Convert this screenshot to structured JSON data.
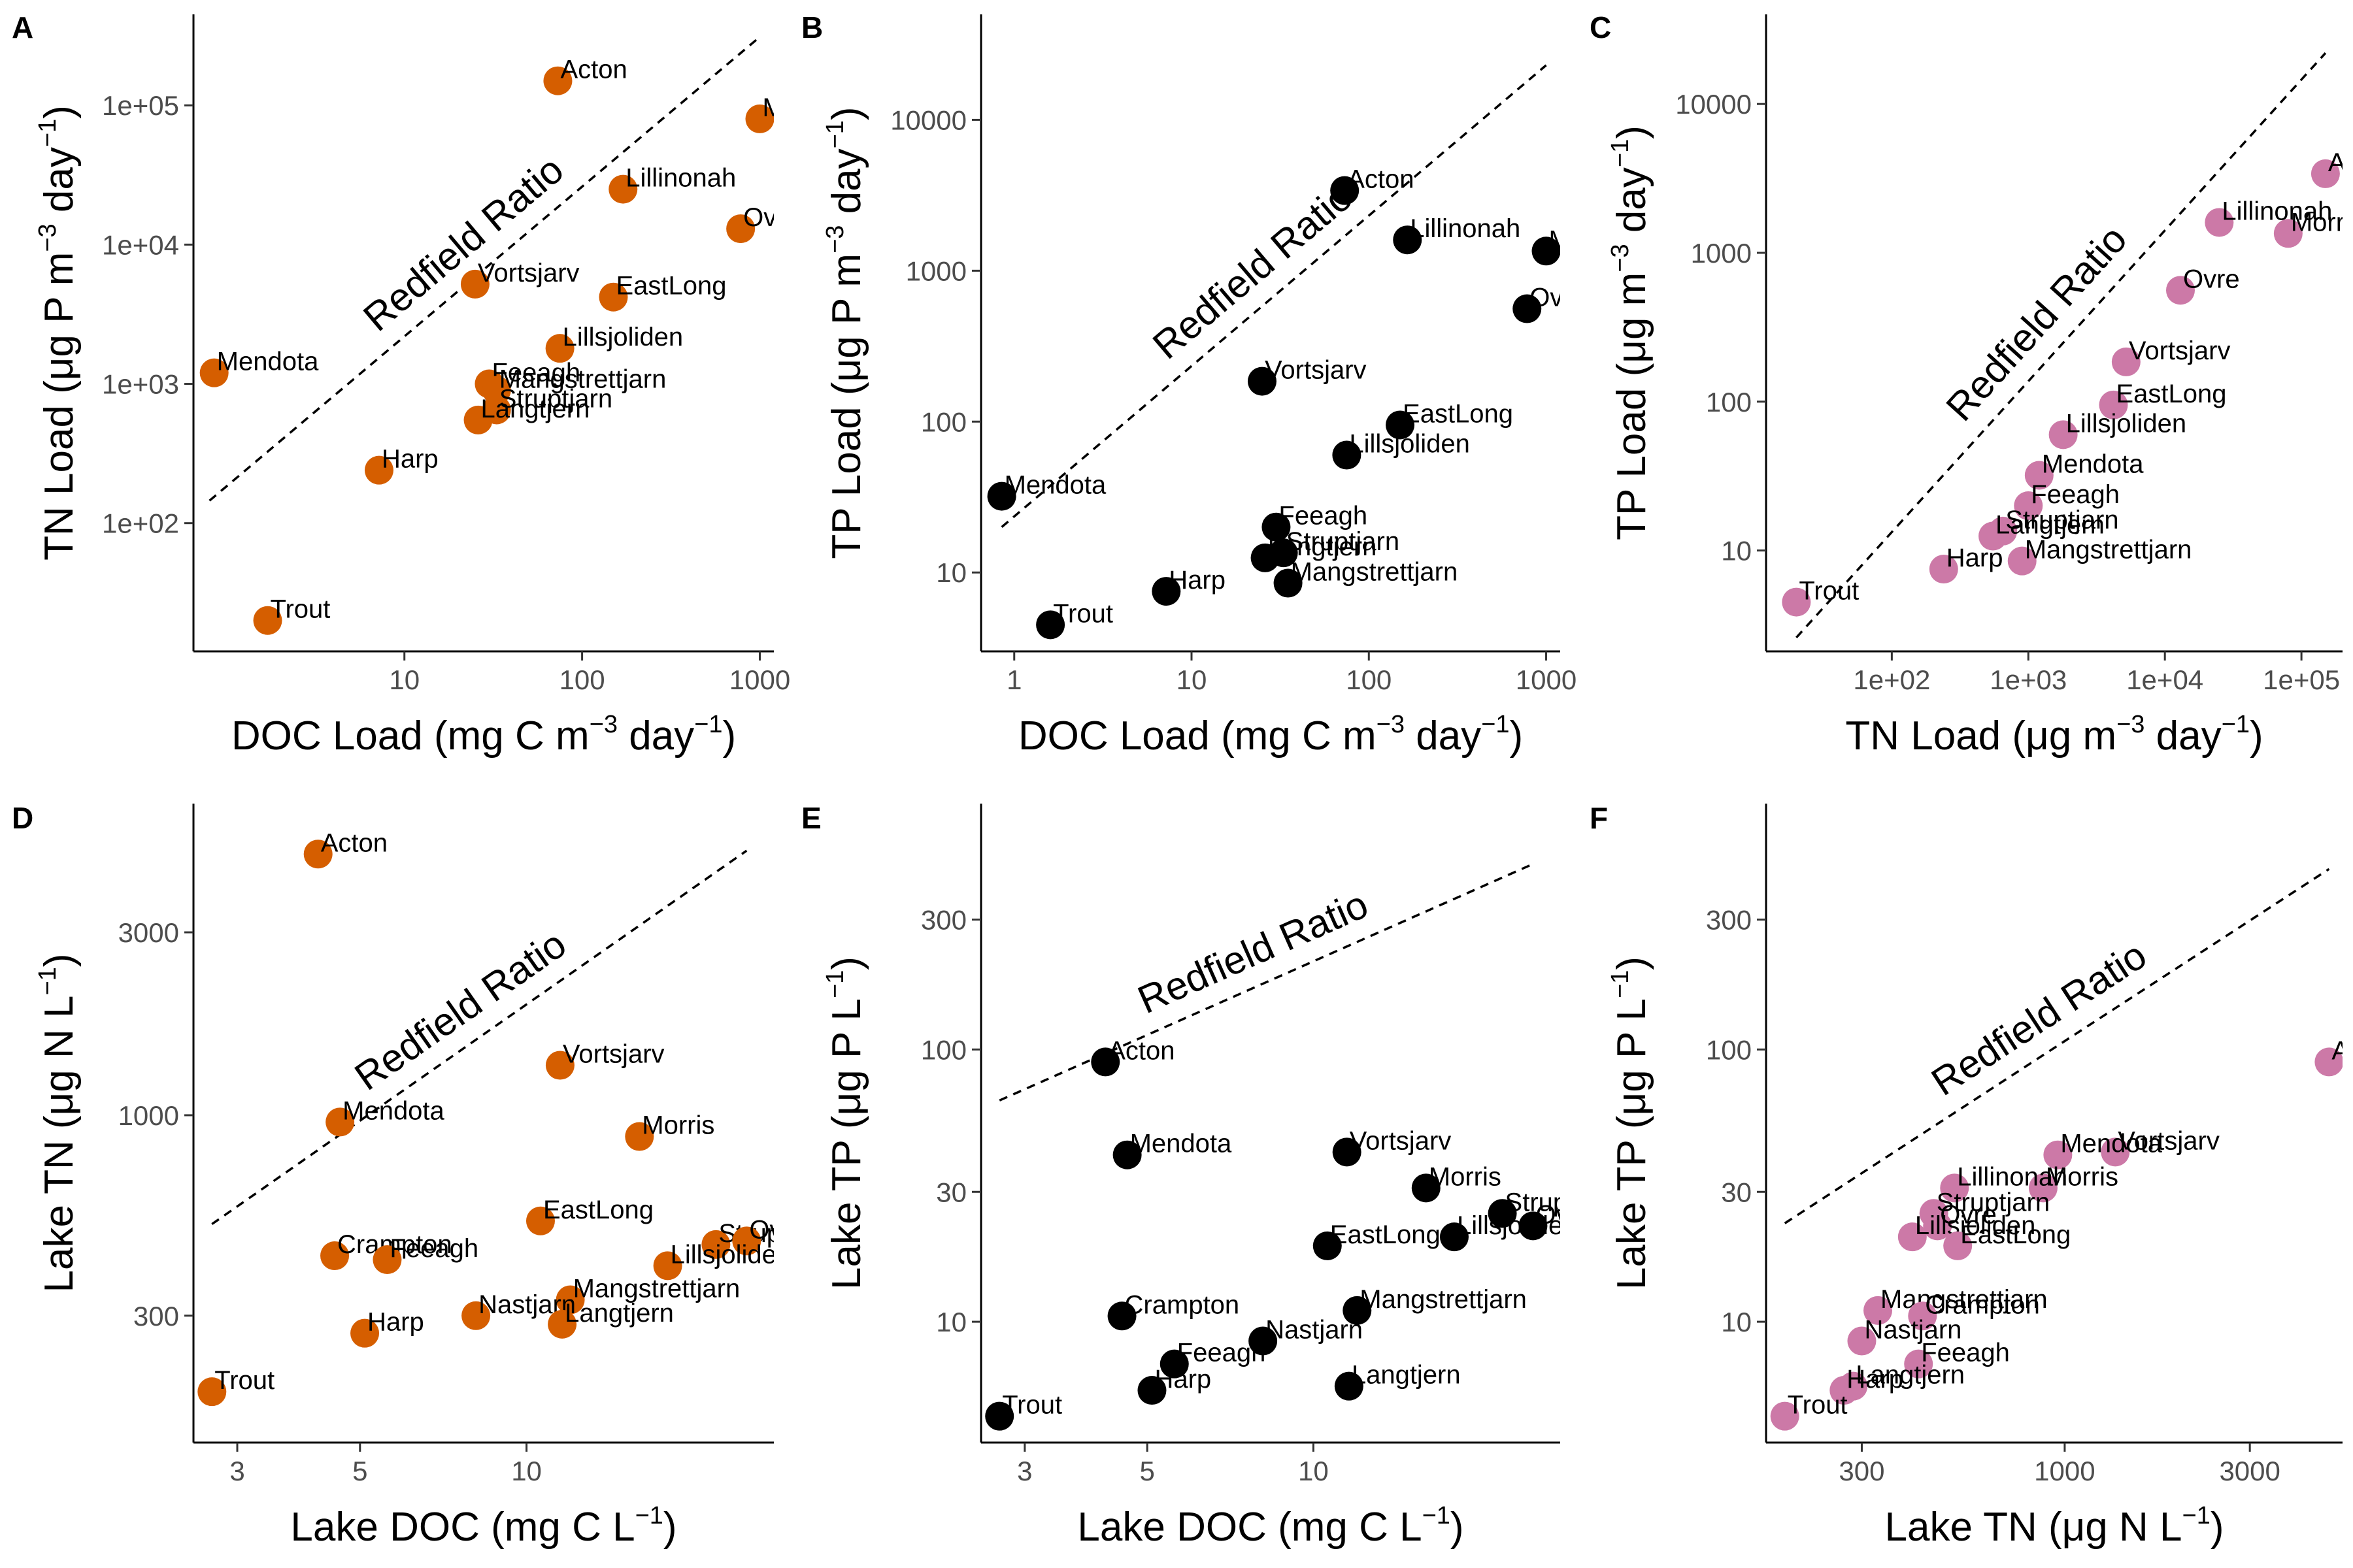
{
  "chart_data": [
    {
      "panel": "A",
      "type": "scatter",
      "xlabel": "DOC Load (mg C m⁻³ day⁻¹)",
      "ylabel": "TN Load (μg P m⁻³ day⁻¹)",
      "x_scale": "log10",
      "y_scale": "log10",
      "xlim": [
        0.65,
        1200
      ],
      "ylim": [
        12,
        450000
      ],
      "x_ticks": [
        {
          "value": 10,
          "label": "10"
        },
        {
          "value": 100,
          "label": "100"
        },
        {
          "value": 1000,
          "label": "1000"
        }
      ],
      "y_ticks": [
        {
          "value": 100,
          "label": "1e+02"
        },
        {
          "value": 1000,
          "label": "1e+03"
        },
        {
          "value": 10000,
          "label": "1e+04"
        },
        {
          "value": 100000,
          "label": "1e+05"
        }
      ],
      "color": "#d55e00",
      "reference_line": {
        "label": "Redfield Ratio",
        "x": [
          0.8,
          1000
        ],
        "y": [
          145,
          310000
        ]
      },
      "points": [
        {
          "name": "Acton",
          "x": 73,
          "y": 150000
        },
        {
          "name": "Mendota",
          "x": 1000,
          "y": 80000
        },
        {
          "name": "Lillinonah",
          "x": 170,
          "y": 25000
        },
        {
          "name": "Ovre",
          "x": 780,
          "y": 13000
        },
        {
          "name": "Vortsjarv",
          "x": 25,
          "y": 5200
        },
        {
          "name": "EastLong",
          "x": 150,
          "y": 4200
        },
        {
          "name": "Lillsjoliden",
          "x": 75,
          "y": 1800
        },
        {
          "name": "Mendota",
          "x": 0.85,
          "y": 1200
        },
        {
          "name": "Feeagh",
          "x": 30,
          "y": 1000
        },
        {
          "name": "Mangstrettjarn",
          "x": 33,
          "y": 900
        },
        {
          "name": "Struptjarn",
          "x": 33,
          "y": 650
        },
        {
          "name": "Langtjern",
          "x": 26,
          "y": 550
        },
        {
          "name": "Harp",
          "x": 7.2,
          "y": 240
        },
        {
          "name": "Trout",
          "x": 1.7,
          "y": 20
        }
      ]
    },
    {
      "panel": "B",
      "type": "scatter",
      "xlabel": "DOC Load (mg C m⁻³ day⁻¹)",
      "ylabel": "TP Load (μg P m⁻³ day⁻¹)",
      "x_scale": "log10",
      "y_scale": "log10",
      "xlim": [
        0.65,
        1200
      ],
      "ylim": [
        3,
        50000
      ],
      "x_ticks": [
        {
          "value": 1,
          "label": "1"
        },
        {
          "value": 10,
          "label": "10"
        },
        {
          "value": 100,
          "label": "100"
        },
        {
          "value": 1000,
          "label": "1000"
        }
      ],
      "y_ticks": [
        {
          "value": 10,
          "label": "10"
        },
        {
          "value": 100,
          "label": "100"
        },
        {
          "value": 1000,
          "label": "1000"
        },
        {
          "value": 10000,
          "label": "10000"
        }
      ],
      "color": "#000000",
      "reference_line": {
        "label": "Redfield Ratio",
        "x": [
          0.85,
          1000
        ],
        "y": [
          20,
          23000
        ]
      },
      "points": [
        {
          "name": "Acton",
          "x": 73,
          "y": 3400
        },
        {
          "name": "Lillinonah",
          "x": 165,
          "y": 1600
        },
        {
          "name": "Mendota",
          "x": 1000,
          "y": 1350
        },
        {
          "name": "Ovre",
          "x": 780,
          "y": 560
        },
        {
          "name": "Vortsjarv",
          "x": 25,
          "y": 185
        },
        {
          "name": "EastLong",
          "x": 150,
          "y": 95
        },
        {
          "name": "Lillsjoliden",
          "x": 75,
          "y": 60
        },
        {
          "name": "Mendota",
          "x": 0.85,
          "y": 32
        },
        {
          "name": "Feeagh",
          "x": 30,
          "y": 20
        },
        {
          "name": "Struptjarn",
          "x": 33,
          "y": 13.5
        },
        {
          "name": "Langtjern",
          "x": 26,
          "y": 12.5
        },
        {
          "name": "Mangstrettjarn",
          "x": 35,
          "y": 8.5
        },
        {
          "name": "Harp",
          "x": 7.2,
          "y": 7.5
        },
        {
          "name": "Trout",
          "x": 1.6,
          "y": 4.5
        }
      ]
    },
    {
      "panel": "C",
      "type": "scatter",
      "xlabel": "TN Load (μg m⁻³ day⁻¹)",
      "ylabel": "TP Load (μg m⁻³ day⁻¹)",
      "x_scale": "log10",
      "y_scale": "log10",
      "xlim": [
        12,
        200000
      ],
      "ylim": [
        2.1,
        40000
      ],
      "x_ticks": [
        {
          "value": 100,
          "label": "1e+02"
        },
        {
          "value": 1000,
          "label": "1e+03"
        },
        {
          "value": 10000,
          "label": "1e+04"
        },
        {
          "value": 100000,
          "label": "1e+05"
        }
      ],
      "y_ticks": [
        {
          "value": 10,
          "label": "10"
        },
        {
          "value": 100,
          "label": "100"
        },
        {
          "value": 1000,
          "label": "1000"
        },
        {
          "value": 10000,
          "label": "10000"
        }
      ],
      "color": "#cc79a7",
      "reference_line": {
        "label": "Redfield Ratio",
        "x": [
          20,
          150000
        ],
        "y": [
          2.6,
          22000
        ]
      },
      "points": [
        {
          "name": "Acton",
          "x": 150000,
          "y": 3400
        },
        {
          "name": "Lillinonah",
          "x": 25000,
          "y": 1600
        },
        {
          "name": "Morris",
          "x": 80000,
          "y": 1350
        },
        {
          "name": "Ovre",
          "x": 13000,
          "y": 560
        },
        {
          "name": "Vortsjarv",
          "x": 5200,
          "y": 185
        },
        {
          "name": "EastLong",
          "x": 4200,
          "y": 95
        },
        {
          "name": "Lillsjoliden",
          "x": 1800,
          "y": 60
        },
        {
          "name": "Mendota",
          "x": 1200,
          "y": 32
        },
        {
          "name": "Feeagh",
          "x": 1000,
          "y": 20
        },
        {
          "name": "Struptjarn",
          "x": 650,
          "y": 13.5
        },
        {
          "name": "Langtjern",
          "x": 550,
          "y": 12.5
        },
        {
          "name": "Harp",
          "x": 240,
          "y": 7.5
        },
        {
          "name": "Mangstrettjarn",
          "x": 900,
          "y": 8.5
        },
        {
          "name": "Trout",
          "x": 20,
          "y": 4.5
        }
      ]
    },
    {
      "panel": "D",
      "type": "scatter",
      "xlabel": "Lake DOC (mg C L⁻¹)",
      "ylabel": "Lake TN (μg N L⁻¹)",
      "x_scale": "log10",
      "y_scale": "log10",
      "xlim": [
        2.5,
        28
      ],
      "ylim": [
        140,
        6500
      ],
      "x_ticks": [
        {
          "value": 3,
          "label": "3"
        },
        {
          "value": 5,
          "label": "5"
        },
        {
          "value": 10,
          "label": "10"
        }
      ],
      "y_ticks": [
        {
          "value": 300,
          "label": "300"
        },
        {
          "value": 1000,
          "label": "1000"
        },
        {
          "value": 3000,
          "label": "3000"
        }
      ],
      "color": "#d55e00",
      "reference_line": {
        "label": "Redfield Ratio",
        "x": [
          2.7,
          25
        ],
        "y": [
          520,
          4900
        ]
      },
      "points": [
        {
          "name": "Acton",
          "x": 4.2,
          "y": 4800
        },
        {
          "name": "Vortsjarv",
          "x": 11.5,
          "y": 1350
        },
        {
          "name": "Mendota",
          "x": 4.6,
          "y": 960
        },
        {
          "name": "Morris",
          "x": 16,
          "y": 880
        },
        {
          "name": "EastLong",
          "x": 10.6,
          "y": 530
        },
        {
          "name": "Struptjarn",
          "x": 22,
          "y": 460
        },
        {
          "name": "Ovre",
          "x": 25,
          "y": 470
        },
        {
          "name": "Crampton",
          "x": 4.5,
          "y": 430
        },
        {
          "name": "Feeagh",
          "x": 5.6,
          "y": 420
        },
        {
          "name": "Lillsjoliden",
          "x": 18,
          "y": 405
        },
        {
          "name": "Mangstrettjarn",
          "x": 12,
          "y": 330
        },
        {
          "name": "Nastjarn",
          "x": 8.1,
          "y": 300
        },
        {
          "name": "Langtjern",
          "x": 11.6,
          "y": 285
        },
        {
          "name": "Harp",
          "x": 5.1,
          "y": 270
        },
        {
          "name": "Trout",
          "x": 2.7,
          "y": 190
        }
      ]
    },
    {
      "panel": "E",
      "type": "scatter",
      "xlabel": "Lake DOC (mg C L⁻¹)",
      "ylabel": "Lake TP (μg P L⁻¹)",
      "x_scale": "log10",
      "y_scale": "log10",
      "xlim": [
        2.5,
        28
      ],
      "ylim": [
        3.6,
        800
      ],
      "x_ticks": [
        {
          "value": 3,
          "label": "3"
        },
        {
          "value": 5,
          "label": "5"
        },
        {
          "value": 10,
          "label": "10"
        }
      ],
      "y_ticks": [
        {
          "value": 10,
          "label": "10"
        },
        {
          "value": 30,
          "label": "30"
        },
        {
          "value": 100,
          "label": "100"
        },
        {
          "value": 300,
          "label": "300"
        }
      ],
      "color": "#000000",
      "reference_line": {
        "label": "Redfield Ratio",
        "x": [
          2.7,
          25
        ],
        "y": [
          65,
          480
        ]
      },
      "points": [
        {
          "name": "Acton",
          "x": 4.2,
          "y": 90
        },
        {
          "name": "Vortsjarv",
          "x": 11.5,
          "y": 42
        },
        {
          "name": "Mendota",
          "x": 4.6,
          "y": 41
        },
        {
          "name": "Morris",
          "x": 16,
          "y": 31
        },
        {
          "name": "Struptjarn",
          "x": 22,
          "y": 25
        },
        {
          "name": "Ovre",
          "x": 25,
          "y": 22.5
        },
        {
          "name": "Lillsjoliden",
          "x": 18,
          "y": 20.5
        },
        {
          "name": "EastLong",
          "x": 10.6,
          "y": 19
        },
        {
          "name": "Mangstrettjarn",
          "x": 12,
          "y": 11
        },
        {
          "name": "Crampton",
          "x": 4.5,
          "y": 10.5
        },
        {
          "name": "Nastjarn",
          "x": 8.1,
          "y": 8.5
        },
        {
          "name": "Feeagh",
          "x": 5.6,
          "y": 7
        },
        {
          "name": "Langtjern",
          "x": 11.6,
          "y": 5.8
        },
        {
          "name": "Harp",
          "x": 5.1,
          "y": 5.6
        },
        {
          "name": "Trout",
          "x": 2.7,
          "y": 4.5
        }
      ]
    },
    {
      "panel": "F",
      "type": "scatter",
      "xlabel": "Lake TN (μg N L⁻¹)",
      "ylabel": "Lake TP (μg P L⁻¹)",
      "x_scale": "log10",
      "y_scale": "log10",
      "xlim": [
        170,
        5200
      ],
      "ylim": [
        3.6,
        800
      ],
      "x_ticks": [
        {
          "value": 300,
          "label": "300"
        },
        {
          "value": 1000,
          "label": "1000"
        },
        {
          "value": 3000,
          "label": "3000"
        }
      ],
      "y_ticks": [
        {
          "value": 10,
          "label": "10"
        },
        {
          "value": 30,
          "label": "30"
        },
        {
          "value": 100,
          "label": "100"
        },
        {
          "value": 300,
          "label": "300"
        }
      ],
      "color": "#cc79a7",
      "reference_line": {
        "label": "Redfield Ratio",
        "x": [
          190,
          4800
        ],
        "y": [
          23,
          460
        ]
      },
      "points": [
        {
          "name": "Acton",
          "x": 4800,
          "y": 90
        },
        {
          "name": "Vortsjarv",
          "x": 1350,
          "y": 42
        },
        {
          "name": "Mendota",
          "x": 960,
          "y": 41
        },
        {
          "name": "Morris",
          "x": 880,
          "y": 31
        },
        {
          "name": "Lillinonah",
          "x": 520,
          "y": 31
        },
        {
          "name": "Struptjarn",
          "x": 460,
          "y": 25
        },
        {
          "name": "Ovre",
          "x": 470,
          "y": 22.5
        },
        {
          "name": "Lillsjoliden",
          "x": 405,
          "y": 20.5
        },
        {
          "name": "EastLong",
          "x": 530,
          "y": 19
        },
        {
          "name": "Mangstrettjarn",
          "x": 330,
          "y": 11
        },
        {
          "name": "Crampton",
          "x": 430,
          "y": 10.5
        },
        {
          "name": "Nastjarn",
          "x": 300,
          "y": 8.5
        },
        {
          "name": "Feeagh",
          "x": 420,
          "y": 7
        },
        {
          "name": "Langtjern",
          "x": 285,
          "y": 5.8
        },
        {
          "name": "Harp",
          "x": 270,
          "y": 5.6
        },
        {
          "name": "Trout",
          "x": 190,
          "y": 4.5
        }
      ]
    }
  ]
}
